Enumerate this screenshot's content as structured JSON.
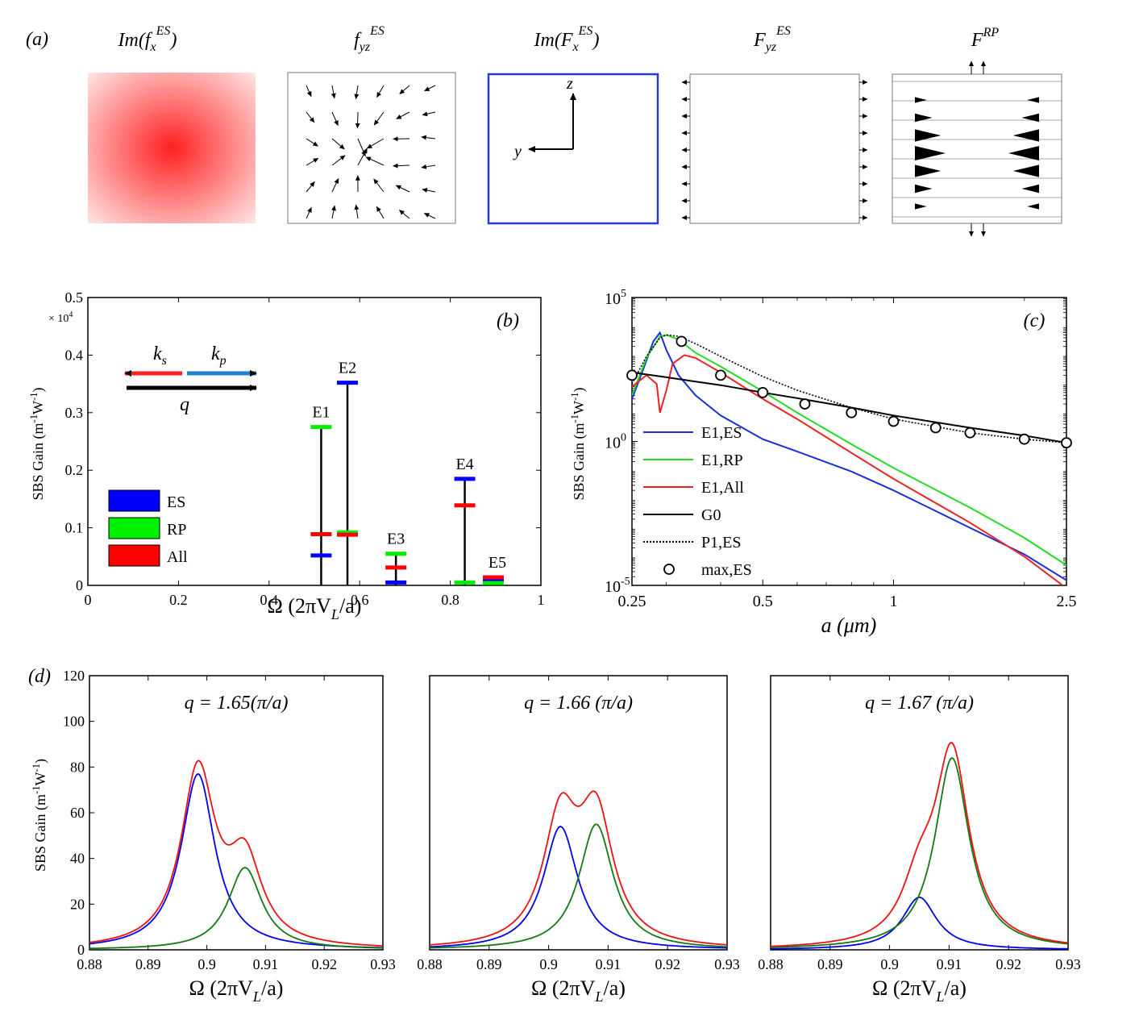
{
  "panel_a": {
    "label": "(a)",
    "subpanels": [
      {
        "title_main": "Im(",
        "title_var": "f",
        "title_sub": "x",
        "title_sup": "ES",
        "title_close": ")"
      },
      {
        "title_main": "",
        "title_var": "f",
        "title_sub": "yz",
        "title_sup": "ES",
        "title_close": ""
      },
      {
        "title_main": "Im(",
        "title_var": "F",
        "title_sub": "x",
        "title_sup": "ES",
        "title_close": ")"
      },
      {
        "title_main": "",
        "title_var": "F",
        "title_sub": "yz",
        "title_sup": "ES",
        "title_close": ""
      },
      {
        "title_main": "",
        "title_var": "F",
        "title_sub": "",
        "title_sup": "RP",
        "title_close": ""
      }
    ],
    "axis_z": "z",
    "axis_y": "y",
    "colors": {
      "red": "#ff2020",
      "blue": "#2a3ad8"
    }
  },
  "chart_data": [
    {
      "id": "b",
      "type": "bar",
      "label": "(b)",
      "xlabel": "Ω (2πV",
      "xlabel_sub": "L",
      "xlabel_tail": "/a)",
      "ylabel": "SBS Gain (m",
      "ylabel_sup1": "-1",
      "ylabel_mid": "W",
      "ylabel_sup2": "-1",
      "ylabel_tail": ")",
      "multiplier": "× 10",
      "multiplier_exp": "4",
      "xlim": [
        0,
        1
      ],
      "ylim": [
        0,
        0.5
      ],
      "xticks": [
        "0",
        "0.2",
        "0.4",
        "0.6",
        "0.8",
        "1"
      ],
      "yticks": [
        "0",
        "0.1",
        "0.2",
        "0.3",
        "0.4",
        "0.5"
      ],
      "legend": [
        {
          "name": "ES",
          "color": "#0000ff"
        },
        {
          "name": "RP",
          "color": "#00ee00"
        },
        {
          "name": "All",
          "color": "#ff0000"
        }
      ],
      "inset": {
        "ks": "k",
        "ks_sub": "s",
        "kp": "k",
        "kp_sub": "p",
        "q": "q"
      },
      "modes": [
        {
          "name": "E1",
          "x": 0.515,
          "ES": 0.052,
          "RP": 0.275,
          "All": 0.089
        },
        {
          "name": "E2",
          "x": 0.573,
          "ES": 0.352,
          "RP": 0.092,
          "All": 0.088
        },
        {
          "name": "E3",
          "x": 0.68,
          "ES": 0.005,
          "RP": 0.055,
          "All": 0.031
        },
        {
          "name": "E4",
          "x": 0.832,
          "ES": 0.185,
          "RP": 0.005,
          "All": 0.139
        },
        {
          "name": "E5",
          "x": 0.895,
          "ES": 0.008,
          "RP": 0.004,
          "All": 0.014
        }
      ],
      "colors": {
        "ES": "#0000ff",
        "RP": "#00ee00",
        "All": "#ff0000"
      }
    },
    {
      "id": "c",
      "type": "line",
      "label": "(c)",
      "xlabel": "a (μm)",
      "ylabel": "SBS Gain (m",
      "ylabel_sup1": "-1",
      "ylabel_mid": "W",
      "ylabel_sup2": "-1",
      "ylabel_tail": ")",
      "x_scale": "log",
      "y_scale": "log",
      "xlim": [
        0.25,
        2.5
      ],
      "ylim": [
        1e-05,
        100000.0
      ],
      "xticks": [
        {
          "v": 0.25,
          "label": "0.25"
        },
        {
          "v": 0.5,
          "label": "0.5"
        },
        {
          "v": 1,
          "label": "1"
        },
        {
          "v": 2.5,
          "label": "2.5"
        }
      ],
      "yticks": [
        {
          "v": 1e-05,
          "base": "10",
          "exp": "-5"
        },
        {
          "v": 1,
          "base": "10",
          "exp": "0"
        },
        {
          "v": 100000.0,
          "base": "10",
          "exp": "5"
        }
      ],
      "series": [
        {
          "name": "E1,ES",
          "color": "#1a2ee0",
          "style": "solid",
          "x": [
            0.25,
            0.265,
            0.28,
            0.29,
            0.3,
            0.32,
            0.35,
            0.4,
            0.5,
            0.6,
            0.8,
            1.0,
            1.5,
            2.0,
            2.5
          ],
          "y": [
            30,
            300,
            3000,
            6000,
            1500,
            200,
            40,
            8,
            1.2,
            0.45,
            0.09,
            0.02,
            0.001,
            0.00012,
            1.5e-05
          ]
        },
        {
          "name": "E1,RP",
          "color": "#22dd22",
          "style": "solid",
          "x": [
            0.25,
            0.27,
            0.29,
            0.3,
            0.32,
            0.35,
            0.4,
            0.5,
            0.6,
            0.8,
            1.0,
            1.5,
            2.0,
            2.5
          ],
          "y": [
            40,
            800,
            4500,
            5000,
            3500,
            1200,
            400,
            55,
            10,
            0.8,
            0.12,
            0.005,
            0.00045,
            5e-05
          ]
        },
        {
          "name": "E1,All",
          "color": "#ee2222",
          "style": "solid",
          "x": [
            0.25,
            0.27,
            0.285,
            0.29,
            0.3,
            0.31,
            0.33,
            0.35,
            0.4,
            0.5,
            0.6,
            0.8,
            1.0,
            1.5,
            2.0,
            2.5
          ],
          "y": [
            80,
            200,
            100,
            10,
            60,
            500,
            1000,
            800,
            250,
            30,
            6,
            0.4,
            0.05,
            0.0015,
            0.0001,
            8e-06
          ]
        },
        {
          "name": "G0",
          "color": "#000000",
          "style": "solid",
          "x": [
            0.25,
            0.3,
            0.35,
            0.4,
            0.5,
            0.6,
            0.8,
            1.0,
            1.5,
            2.0,
            2.5
          ],
          "y": [
            250,
            170,
            120,
            90,
            50,
            32,
            15,
            8,
            3,
            1.6,
            0.9
          ]
        },
        {
          "name": "P1,ES",
          "color": "#000000",
          "style": "dotted",
          "x": [
            0.25,
            0.27,
            0.29,
            0.3,
            0.32,
            0.35,
            0.4,
            0.5,
            0.6,
            0.8,
            1.0,
            1.5,
            2.0,
            2.5
          ],
          "y": [
            100,
            900,
            4000,
            5000,
            4500,
            2500,
            900,
            180,
            60,
            15,
            6,
            2,
            1.2,
            0.9
          ]
        },
        {
          "name": "max,ES",
          "color": "#000000",
          "style": "markers",
          "x": [
            0.25,
            0.325,
            0.4,
            0.5,
            0.625,
            0.8,
            1.0,
            1.25,
            1.5,
            2.0,
            2.5
          ],
          "y": [
            200,
            3000,
            200,
            50,
            20,
            10,
            5,
            3,
            2,
            1.2,
            0.9
          ]
        }
      ]
    },
    {
      "id": "d1",
      "type": "line",
      "label": "(d)",
      "title": "q = 1.65(π/a)",
      "xlabel": "Ω (2πV",
      "xlabel_sub": "L",
      "xlabel_tail": "/a)",
      "ylabel": "SBS Gain (m",
      "ylabel_sup1": "-1",
      "ylabel_mid": "W",
      "ylabel_sup2": "-1",
      "ylabel_tail": ")",
      "xlim": [
        0.88,
        0.93
      ],
      "ylim": [
        0,
        120
      ],
      "xticks": [
        "0.88",
        "0.89",
        "0.9",
        "0.91",
        "0.92",
        "0.93"
      ],
      "yticks": [
        "0",
        "20",
        "40",
        "60",
        "80",
        "100",
        "120"
      ],
      "peaks": [
        {
          "color": "#0000ee",
          "center": 0.8985,
          "gamma": 0.0035,
          "amp": 77
        },
        {
          "color": "#127a12",
          "center": 0.9065,
          "gamma": 0.0035,
          "amp": 36
        }
      ],
      "sum_color": "#ee1111"
    },
    {
      "id": "d2",
      "type": "line",
      "title": "q = 1.66 (π/a)",
      "xlabel": "Ω (2πV",
      "xlabel_sub": "L",
      "xlabel_tail": "/a)",
      "xlim": [
        0.88,
        0.93
      ],
      "ylim": [
        0,
        120
      ],
      "xticks": [
        "0.88",
        "0.89",
        "0.9",
        "0.91",
        "0.92",
        "0.93"
      ],
      "peaks": [
        {
          "color": "#0000ee",
          "center": 0.902,
          "gamma": 0.0035,
          "amp": 54
        },
        {
          "color": "#127a12",
          "center": 0.908,
          "gamma": 0.0035,
          "amp": 55
        }
      ],
      "sum_color": "#ee1111"
    },
    {
      "id": "d3",
      "type": "line",
      "title": "q = 1.67 (π/a)",
      "xlabel": "Ω (2πV",
      "xlabel_sub": "L",
      "xlabel_tail": "/a)",
      "xlim": [
        0.88,
        0.93
      ],
      "ylim": [
        0,
        120
      ],
      "xticks": [
        "0.88",
        "0.89",
        "0.9",
        "0.91",
        "0.92",
        "0.93"
      ],
      "peaks": [
        {
          "color": "#0000ee",
          "center": 0.905,
          "gamma": 0.0035,
          "amp": 23
        },
        {
          "color": "#127a12",
          "center": 0.9105,
          "gamma": 0.0035,
          "amp": 84
        }
      ],
      "sum_color": "#ee1111"
    }
  ]
}
